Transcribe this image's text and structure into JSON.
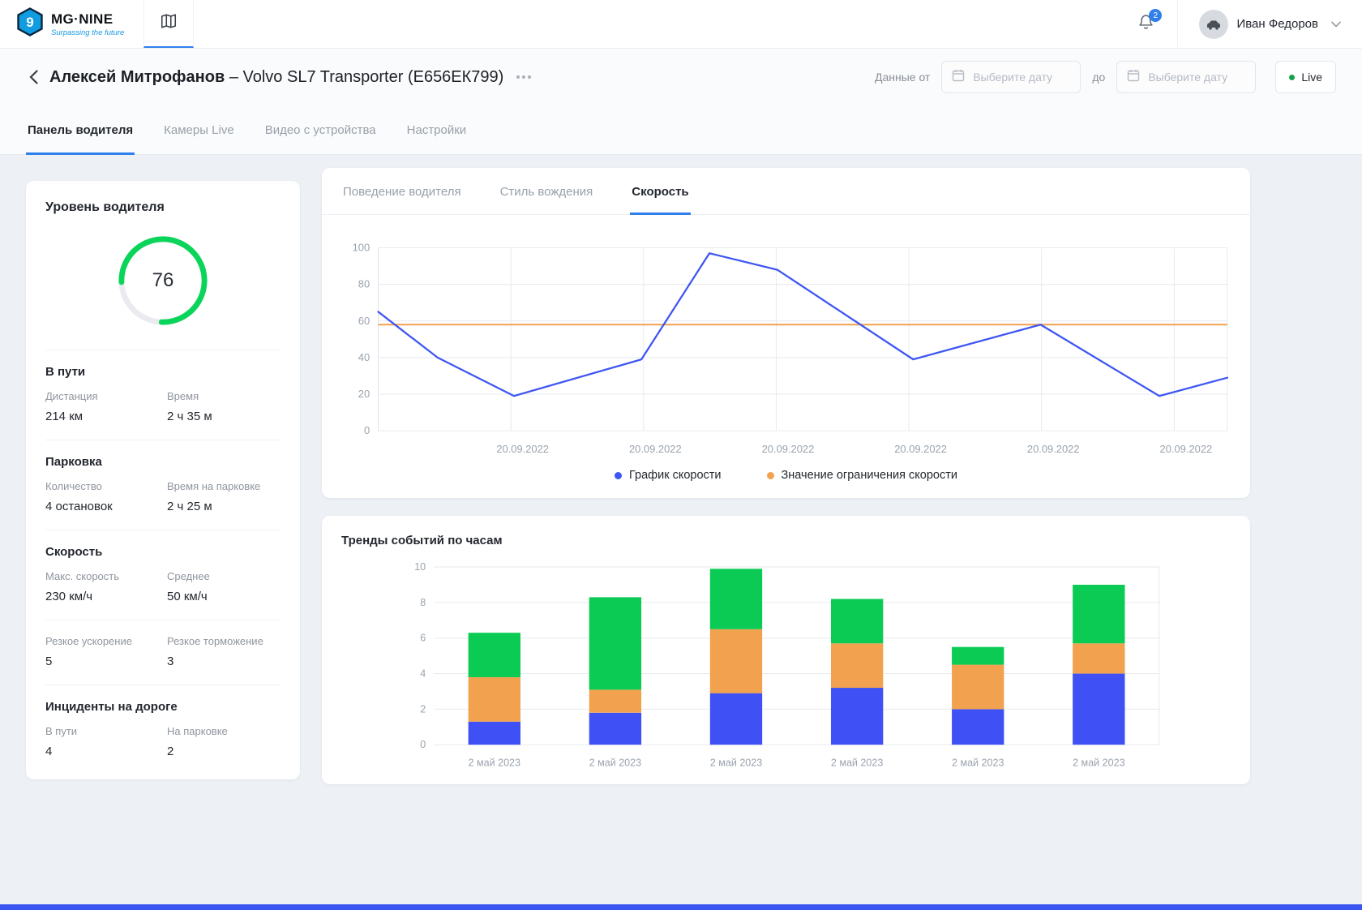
{
  "colors": {
    "accent_blue": "#2f80ed",
    "gauge_green": "#0bd45b",
    "live_dot": "#17a04b",
    "badge_blue": "#2f80ed"
  },
  "topbar": {
    "brand": {
      "name": "MG·NINE",
      "tagline": "Surpassing the future"
    },
    "notifications_badge": "2",
    "user_name": "Иван Федоров"
  },
  "header": {
    "title_name": "Алексей Митрофанов",
    "title_vehicle": "– Volvo SL7 Transporter (Е656ЕК799)",
    "data_from_label": "Данные от",
    "to_label": "до",
    "date_placeholder": "Выберите дату",
    "live_label": "Live"
  },
  "tabs": [
    {
      "label": "Панель водителя"
    },
    {
      "label": "Камеры Live"
    },
    {
      "label": "Видео с устройства"
    },
    {
      "label": "Настройки"
    }
  ],
  "driver_panel": {
    "level_title": "Уровень водителя",
    "level_value": "76",
    "sections": [
      {
        "title": "В пути",
        "stats": [
          {
            "label": "Дистанция",
            "value": "214 км"
          },
          {
            "label": "Время",
            "value": "2 ч 35 м"
          }
        ]
      },
      {
        "title": "Парковка",
        "stats": [
          {
            "label": "Количество",
            "value": "4 остановок"
          },
          {
            "label": "Время на парковке",
            "value": "2 ч 25 м"
          }
        ]
      },
      {
        "title": "Скорость",
        "stats": [
          {
            "label": "Макс. скорость",
            "value": "230 км/ч"
          },
          {
            "label": "Среднее",
            "value": "50 км/ч"
          }
        ]
      },
      {
        "title": "",
        "stats": [
          {
            "label": "Резкое ускорение",
            "value": "5"
          },
          {
            "label": "Резкое торможение",
            "value": "3"
          }
        ]
      },
      {
        "title": "Инциденты на дороге",
        "stats": [
          {
            "label": "В пути",
            "value": "4"
          },
          {
            "label": "На парковке",
            "value": "2"
          }
        ]
      }
    ]
  },
  "chart_card": {
    "tabs": [
      {
        "label": "Поведение водителя"
      },
      {
        "label": "Стиль вождения"
      },
      {
        "label": "Скорость"
      }
    ],
    "legend": [
      {
        "label": "График скорости",
        "color": "#3f56f3"
      },
      {
        "label": "Значение ограничения скорости",
        "color": "#f2a24e"
      }
    ]
  },
  "chart_data": [
    {
      "type": "line",
      "title": "Скорость",
      "x_tick_labels": [
        "20.09.2022",
        "20.09.2022",
        "20.09.2022",
        "20.09.2022",
        "20.09.2022",
        "20.09.2022"
      ],
      "ylim": [
        0,
        100
      ],
      "yticks": [
        0,
        20,
        40,
        60,
        80,
        100
      ],
      "grid": true,
      "legend_position": "bottom",
      "series": [
        {
          "name": "График скорости",
          "color": "#3f56f3",
          "points_x_fraction": [
            0,
            0.07,
            0.16,
            0.31,
            0.39,
            0.47,
            0.63,
            0.78,
            0.92,
            1.0
          ],
          "values": [
            65,
            40,
            19,
            39,
            97,
            88,
            39,
            58,
            19,
            29
          ]
        },
        {
          "name": "Значение ограничения скорости",
          "color": "#f2a24e",
          "constant": 58
        }
      ]
    },
    {
      "type": "stacked_bar",
      "title": "Тренды событий по часам",
      "categories": [
        "2 май 2023",
        "2 май 2023",
        "2 май 2023",
        "2 май 2023",
        "2 май 2023",
        "2 май 2023"
      ],
      "ylim": [
        0,
        10
      ],
      "yticks": [
        0,
        2,
        4,
        6,
        8,
        10
      ],
      "grid": true,
      "series": [
        {
          "name": "series-blue",
          "color": "#3f51f5",
          "values": [
            1.3,
            1.8,
            2.9,
            3.2,
            2.0,
            4.0
          ]
        },
        {
          "name": "series-orange",
          "color": "#f2a24e",
          "values": [
            2.5,
            1.3,
            3.6,
            2.5,
            2.5,
            1.7
          ]
        },
        {
          "name": "series-green",
          "color": "#0bcb55",
          "values": [
            2.5,
            5.2,
            3.4,
            2.5,
            1.0,
            3.3
          ]
        }
      ]
    }
  ]
}
